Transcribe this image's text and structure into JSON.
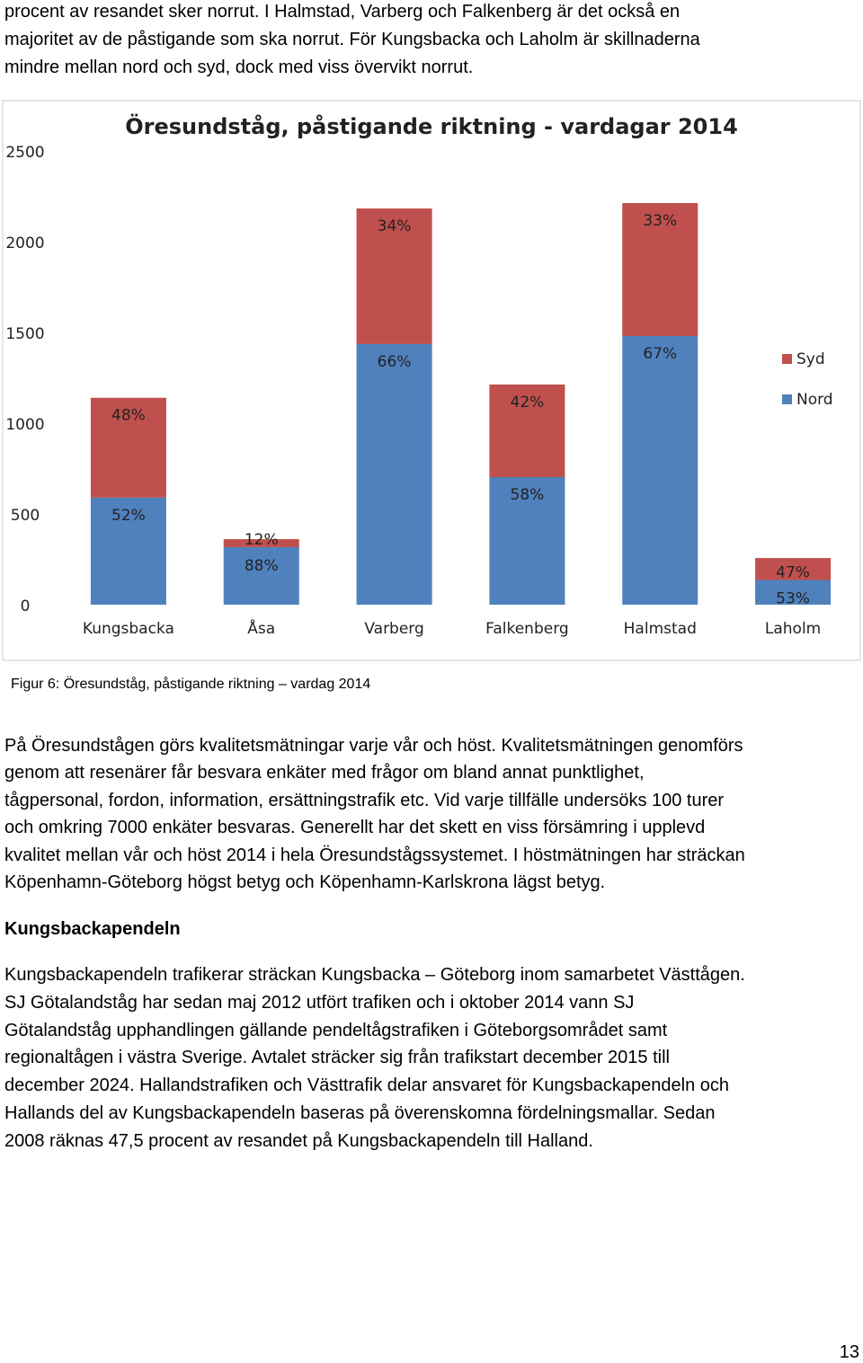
{
  "intro_lines": [
    "procent av resandet sker norrut. I Halmstad, Varberg och Falkenberg är det också en",
    "majoritet av de påstigande som ska norrut. För Kungsbacka och Laholm är skillnaderna",
    "mindre mellan nord och syd, dock med viss övervikt norrut."
  ],
  "chart_data": {
    "type": "stacked-bar",
    "title": "Öresundståg, påstigande riktning - vardagar 2014",
    "categories": [
      "Kungsbacka",
      "Åsa",
      "Varberg",
      "Falkenberg",
      "Halmstad",
      "Laholm"
    ],
    "series": [
      {
        "name": "Nord",
        "color": "#4f81bd",
        "values": [
          590,
          317,
          1436,
          703,
          1480,
          136
        ],
        "value_labels": [
          "52%",
          "88%",
          "66%",
          "58%",
          "67%",
          "53%"
        ]
      },
      {
        "name": "Syd",
        "color": "#c0504d",
        "values": [
          550,
          44,
          747,
          510,
          733,
          121
        ],
        "value_labels": [
          "48%",
          "12%",
          "34%",
          "42%",
          "33%",
          "47%"
        ]
      }
    ],
    "ylim": [
      0,
      2500
    ],
    "yticks": [
      0,
      500,
      1000,
      1500,
      2000,
      2500
    ],
    "grid": false,
    "legend": "right"
  },
  "caption": "Figur 6: Öresundståg, påstigande riktning – vardag 2014",
  "paragraph1_lines": [
    "På Öresundstågen görs kvalitetsmätningar varje vår och höst. Kvalitetsmätningen genomförs",
    "genom att resenärer får besvara enkäter med frågor om bland annat punktlighet,",
    "tågpersonal, fordon, information, ersättningstrafik etc. Vid varje tillfälle undersöks 100 turer",
    "och omkring 7000 enkäter besvaras. Generellt har det skett en viss försämring i upplevd",
    "kvalitet mellan vår och höst 2014 i hela Öresundstågssystemet. I höstmätningen har sträckan",
    "Köpenhamn-Göteborg högst betyg och Köpenhamn-Karlskrona lägst betyg."
  ],
  "heading": "Kungsbackapendeln",
  "paragraph2_lines": [
    "Kungsbackapendeln trafikerar sträckan Kungsbacka – Göteborg inom samarbetet Västtågen.",
    "SJ Götalandståg har sedan maj 2012 utfört trafiken och i oktober 2014 vann SJ",
    "Götalandståg upphandlingen gällande pendeltågstrafiken i Göteborgsområdet samt",
    "regionaltågen i västra Sverige. Avtalet sträcker sig från trafikstart december 2015 till",
    "december 2024. Hallandstrafiken och Västtrafik delar ansvaret för Kungsbackapendeln och",
    "Hallands del av Kungsbackapendeln baseras på överenskomna fördelningsmallar. Sedan",
    "2008 räknas 47,5 procent av resandet på Kungsbackapendeln till Halland."
  ],
  "page_number": "13"
}
